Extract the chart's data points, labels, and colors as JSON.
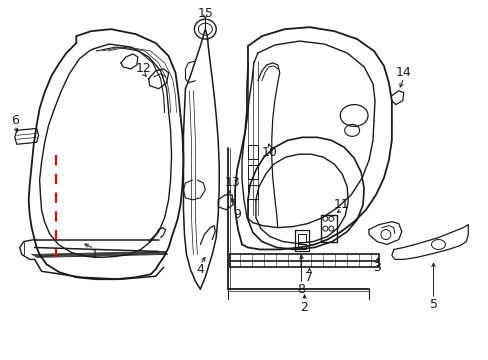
{
  "bg_color": "#ffffff",
  "line_color": "#1a1a1a",
  "red_color": "#ff0000",
  "gray_fill": "#d8d8d8",
  "figsize": [
    4.89,
    3.6
  ],
  "dpi": 100
}
